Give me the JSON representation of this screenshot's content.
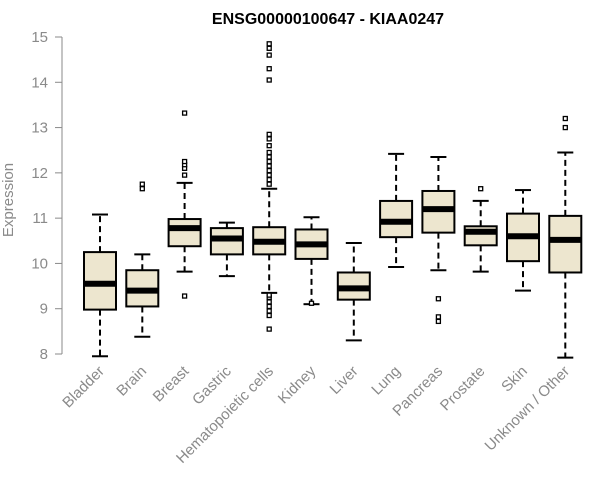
{
  "chart_data": {
    "type": "boxplot",
    "title": "ENSG00000100647 - KIAA0247",
    "xlabel": "",
    "ylabel": "Expression",
    "ylim": [
      8,
      15
    ],
    "yticks": [
      8,
      9,
      10,
      11,
      12,
      13,
      14,
      15
    ],
    "box_color": "#ede6cf",
    "categories": [
      "Bladder",
      "Brain",
      "Breast",
      "Gastric",
      "Hematopoietic cells",
      "Kidney",
      "Liver",
      "Lung",
      "Pancreas",
      "Prostate",
      "Skin",
      "Unknown / Other"
    ],
    "boxes": [
      {
        "name": "Bladder",
        "whisker_low": 7.95,
        "q1": 8.98,
        "median": 9.55,
        "q3": 10.25,
        "whisker_high": 11.08,
        "outliers": []
      },
      {
        "name": "Brain",
        "whisker_low": 8.38,
        "q1": 9.05,
        "median": 9.4,
        "q3": 9.85,
        "whisker_high": 10.2,
        "outliers": [
          11.65,
          11.75
        ]
      },
      {
        "name": "Breast",
        "whisker_low": 9.82,
        "q1": 10.38,
        "median": 10.78,
        "q3": 10.98,
        "whisker_high": 11.78,
        "outliers": [
          9.28,
          11.95,
          12.1,
          12.18,
          12.25,
          13.32
        ]
      },
      {
        "name": "Gastric",
        "whisker_low": 9.72,
        "q1": 10.2,
        "median": 10.55,
        "q3": 10.78,
        "whisker_high": 10.9,
        "outliers": []
      },
      {
        "name": "Hematopoietic cells",
        "whisker_low": 9.35,
        "q1": 10.2,
        "median": 10.48,
        "q3": 10.8,
        "whisker_high": 11.65,
        "outliers": [
          8.55,
          8.85,
          8.95,
          9.05,
          9.15,
          9.25,
          9.3,
          11.75,
          11.85,
          11.95,
          12.05,
          12.15,
          12.25,
          12.35,
          12.45,
          12.6,
          12.75,
          12.85,
          14.05,
          14.3,
          14.6,
          14.75,
          14.85
        ]
      },
      {
        "name": "Kidney",
        "whisker_low": 9.1,
        "q1": 10.1,
        "median": 10.42,
        "q3": 10.75,
        "whisker_high": 11.02,
        "outliers": [
          9.12
        ]
      },
      {
        "name": "Liver",
        "whisker_low": 8.3,
        "q1": 9.2,
        "median": 9.45,
        "q3": 9.8,
        "whisker_high": 10.45,
        "outliers": []
      },
      {
        "name": "Lung",
        "whisker_low": 9.92,
        "q1": 10.58,
        "median": 10.92,
        "q3": 11.38,
        "whisker_high": 12.42,
        "outliers": []
      },
      {
        "name": "Pancreas",
        "whisker_low": 9.85,
        "q1": 10.68,
        "median": 11.2,
        "q3": 11.6,
        "whisker_high": 12.35,
        "outliers": [
          9.22,
          8.82,
          8.72
        ]
      },
      {
        "name": "Prostate",
        "whisker_low": 9.82,
        "q1": 10.4,
        "median": 10.7,
        "q3": 10.82,
        "whisker_high": 11.38,
        "outliers": [
          11.65
        ]
      },
      {
        "name": "Skin",
        "whisker_low": 9.4,
        "q1": 10.05,
        "median": 10.6,
        "q3": 11.1,
        "whisker_high": 11.62,
        "outliers": []
      },
      {
        "name": "Unknown / Other",
        "whisker_low": 7.92,
        "q1": 9.8,
        "median": 10.52,
        "q3": 11.05,
        "whisker_high": 12.45,
        "outliers": [
          13.0,
          13.2
        ]
      }
    ]
  }
}
